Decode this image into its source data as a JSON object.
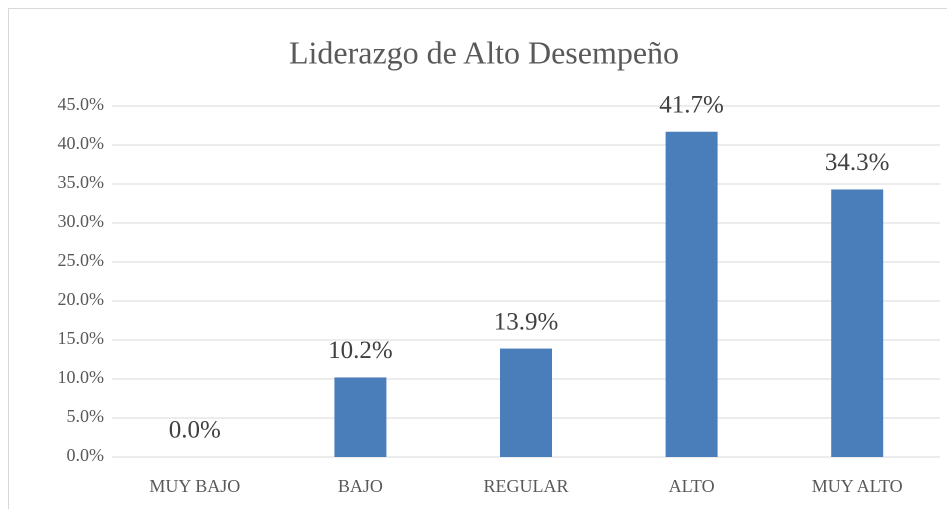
{
  "chart_data": {
    "type": "bar",
    "title": "Liderazgo de Alto Desempeño",
    "categories": [
      "MUY BAJO",
      "BAJO",
      "REGULAR",
      "ALTO",
      "MUY ALTO"
    ],
    "values": [
      0,
      10.2,
      13.9,
      41.7,
      34.3
    ],
    "value_labels": [
      "0.0%",
      "10.2%",
      "13.9%",
      "41.7%",
      "34.3%"
    ],
    "color": "#4a7ebb",
    "ylim": [
      0,
      45
    ],
    "yticks": [
      {
        "value": 0,
        "label": "0.0%"
      },
      {
        "value": 5,
        "label": "5.0%"
      },
      {
        "value": 10,
        "label": "10.0%"
      },
      {
        "value": 15,
        "label": "15.0%"
      },
      {
        "value": 20,
        "label": "20.0%"
      },
      {
        "value": 25,
        "label": "25.0%"
      },
      {
        "value": 30,
        "label": "30.0%"
      },
      {
        "value": 35,
        "label": "35.0%"
      },
      {
        "value": 40,
        "label": "40.0%"
      },
      {
        "value": 45,
        "label": "45.0%"
      }
    ],
    "grid": true
  }
}
